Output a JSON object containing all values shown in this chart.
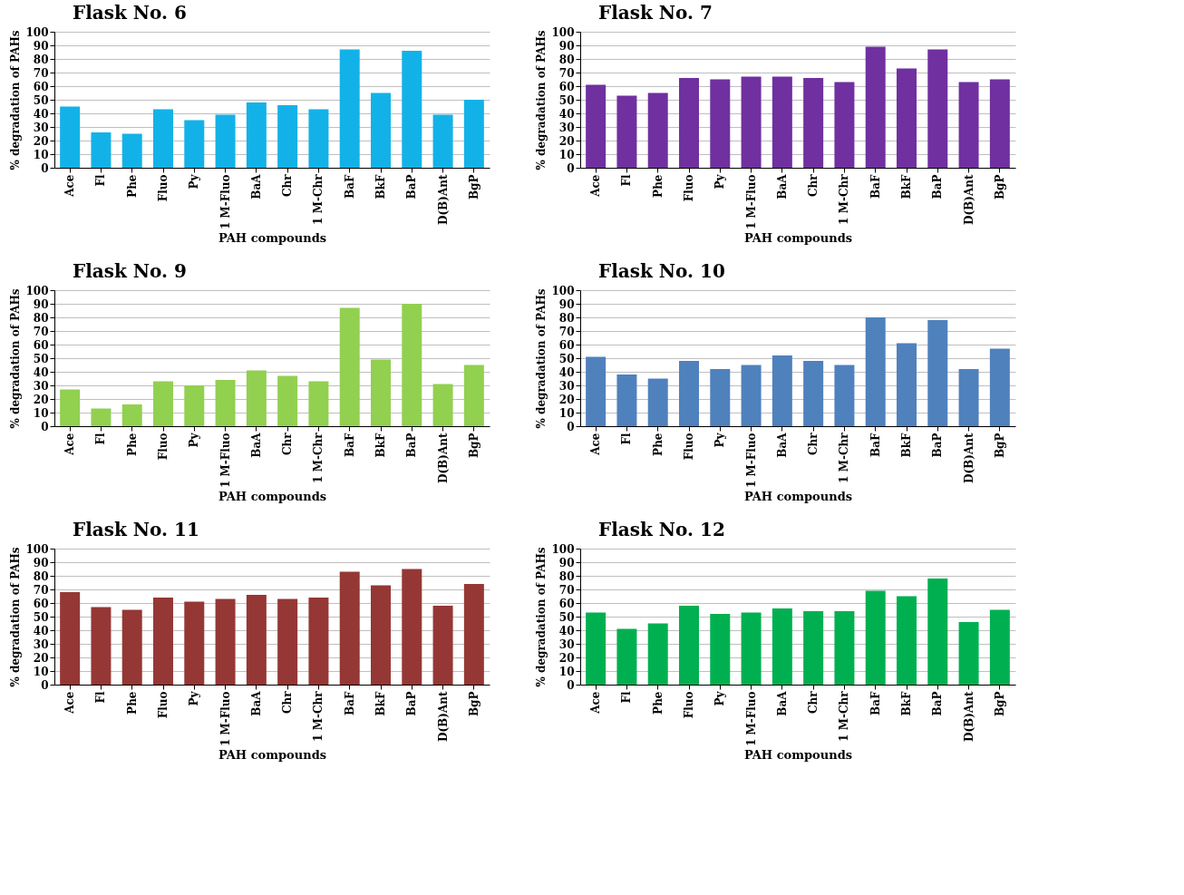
{
  "chart_data": [
    {
      "type": "bar",
      "title": "Flask No. 6",
      "xlabel": "PAH compounds",
      "ylabel": "% degradation of PAHs",
      "categories": [
        "Ace",
        "Fl",
        "Phe",
        "Fluo",
        "Py",
        "1 M-Fluo",
        "BaA",
        "Chr",
        "1 M-Chr",
        "BaF",
        "BkF",
        "BaP",
        "D(B)Ant",
        "BgP"
      ],
      "values": [
        45,
        26,
        25,
        43,
        35,
        39,
        48,
        46,
        43,
        87,
        55,
        86,
        39,
        50
      ],
      "color": "#12b2e8",
      "ylim": [
        0,
        100
      ],
      "yticks": [
        0,
        10,
        20,
        30,
        40,
        50,
        60,
        70,
        80,
        90,
        100
      ],
      "grid": "y"
    },
    {
      "type": "bar",
      "title": "Flask No. 7",
      "xlabel": "PAH compounds",
      "ylabel": "% degradation of PAHs",
      "categories": [
        "Ace",
        "Fl",
        "Phe",
        "Fluo",
        "Py",
        "1 M-Fluo",
        "BaA",
        "Chr",
        "1 M-Chr",
        "BaF",
        "BkF",
        "BaP",
        "D(B)Ant",
        "BgP"
      ],
      "values": [
        61,
        53,
        55,
        66,
        65,
        67,
        67,
        66,
        63,
        89,
        73,
        87,
        63,
        65
      ],
      "color": "#7030a0",
      "ylim": [
        0,
        100
      ],
      "yticks": [
        0,
        10,
        20,
        30,
        40,
        50,
        60,
        70,
        80,
        90,
        100
      ],
      "grid": "y"
    },
    {
      "type": "bar",
      "title": "Flask No. 9",
      "xlabel": "PAH compounds",
      "ylabel": "% degradation of PAHs",
      "categories": [
        "Ace",
        "Fl",
        "Phe",
        "Fluo",
        "Py",
        "1 M-Fluo",
        "BaA",
        "Chr",
        "1 M-Chr",
        "BaF",
        "BkF",
        "BaP",
        "D(B)Ant",
        "BgP"
      ],
      "values": [
        27,
        13,
        16,
        33,
        30,
        34,
        41,
        37,
        33,
        87,
        49,
        90,
        31,
        45
      ],
      "color": "#92d050",
      "ylim": [
        0,
        100
      ],
      "yticks": [
        0,
        10,
        20,
        30,
        40,
        50,
        60,
        70,
        80,
        90,
        100
      ],
      "grid": "y"
    },
    {
      "type": "bar",
      "title": "Flask No. 10",
      "xlabel": "PAH compounds",
      "ylabel": "% degradation of PAHs",
      "categories": [
        "Ace",
        "Fl",
        "Phe",
        "Fluo",
        "Py",
        "1 M-Fluo",
        "BaA",
        "Chr",
        "1 M-Chr",
        "BaF",
        "BkF",
        "BaP",
        "D(B)Ant",
        "BgP"
      ],
      "values": [
        51,
        38,
        35,
        48,
        42,
        45,
        52,
        48,
        45,
        80,
        61,
        78,
        42,
        57
      ],
      "color": "#4f81bd",
      "ylim": [
        0,
        100
      ],
      "yticks": [
        0,
        10,
        20,
        30,
        40,
        50,
        60,
        70,
        80,
        90,
        100
      ],
      "grid": "y"
    },
    {
      "type": "bar",
      "title": "Flask No. 11",
      "xlabel": "PAH compounds",
      "ylabel": "% degradation of PAHs",
      "categories": [
        "Ace",
        "Fl",
        "Phe",
        "Fluo",
        "Py",
        "1 M-Fluo",
        "BaA",
        "Chr",
        "1 M-Chr",
        "BaF",
        "BkF",
        "BaP",
        "D(B)Ant",
        "BgP"
      ],
      "values": [
        68,
        57,
        55,
        64,
        61,
        63,
        66,
        63,
        64,
        83,
        73,
        85,
        58,
        74
      ],
      "color": "#953735",
      "ylim": [
        0,
        100
      ],
      "yticks": [
        0,
        10,
        20,
        30,
        40,
        50,
        60,
        70,
        80,
        90,
        100
      ],
      "grid": "y"
    },
    {
      "type": "bar",
      "title": "Flask No. 12",
      "xlabel": "PAH compounds",
      "ylabel": "% degradation of PAHs",
      "categories": [
        "Ace",
        "Fl",
        "Phe",
        "Fluo",
        "Py",
        "1 M-Fluo",
        "BaA",
        "Chr",
        "1 M-Chr",
        "BaF",
        "BkF",
        "BaP",
        "D(B)Ant",
        "BgP"
      ],
      "values": [
        53,
        41,
        45,
        58,
        52,
        53,
        56,
        54,
        54,
        69,
        65,
        78,
        46,
        55
      ],
      "color": "#00b050",
      "ylim": [
        0,
        100
      ],
      "yticks": [
        0,
        10,
        20,
        30,
        40,
        50,
        60,
        70,
        80,
        90,
        100
      ],
      "grid": "y"
    }
  ]
}
